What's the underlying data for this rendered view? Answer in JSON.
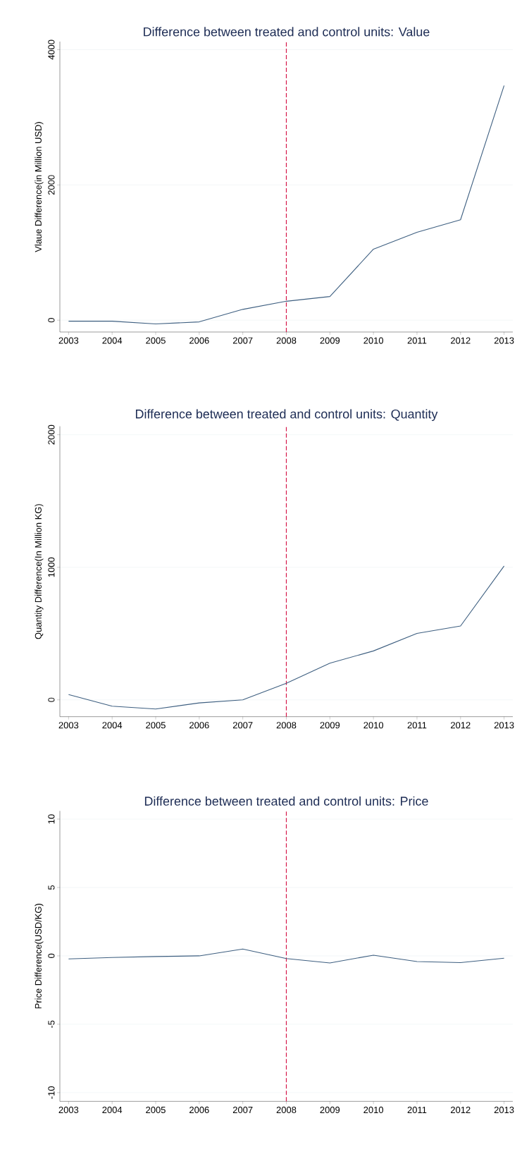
{
  "chart_data": [
    {
      "type": "line",
      "title": "Difference between treated and control units: Value",
      "ylabel": "Vlaue Difference(in Million USD)",
      "x": [
        2003,
        2004,
        2005,
        2006,
        2007,
        2008,
        2009,
        2010,
        2011,
        2012,
        2013
      ],
      "values": [
        -15,
        -15,
        -55,
        -25,
        160,
        280,
        350,
        1050,
        1300,
        1485,
        3470
      ],
      "color": "#3e5f80",
      "xlim": [
        2002.8,
        2013.2
      ],
      "ylim": [
        -175,
        4120
      ],
      "xticks": [
        2003,
        2004,
        2005,
        2006,
        2007,
        2008,
        2009,
        2010,
        2011,
        2012,
        2013
      ],
      "yticks": [
        0,
        2000,
        4000
      ],
      "grid": "y",
      "ref_lines": [
        {
          "axis": "x",
          "value": 2008,
          "color": "#d6184a",
          "line_style": "dashed"
        }
      ]
    },
    {
      "type": "line",
      "title": "Difference between treated and control units: Quantity",
      "ylabel": "Quantity Difference(In Million KG)",
      "x": [
        2003,
        2004,
        2005,
        2006,
        2007,
        2008,
        2009,
        2010,
        2011,
        2012,
        2013
      ],
      "values": [
        40,
        -48,
        -69,
        -23,
        0,
        125,
        277,
        369,
        501,
        557,
        1010
      ],
      "color": "#3e5f80",
      "xlim": [
        2002.8,
        2013.2
      ],
      "ylim": [
        -127,
        2064
      ],
      "xticks": [
        2003,
        2004,
        2005,
        2006,
        2007,
        2008,
        2009,
        2010,
        2011,
        2012,
        2013
      ],
      "yticks": [
        0,
        1000,
        2000
      ],
      "grid": "y",
      "ref_lines": [
        {
          "axis": "x",
          "value": 2008,
          "color": "#d6184a",
          "line_style": "dashed"
        }
      ]
    },
    {
      "type": "line",
      "title": "Difference between treated and control units: Price",
      "ylabel": "Price Difference(USD/KG)",
      "x": [
        2003,
        2004,
        2005,
        2006,
        2007,
        2008,
        2009,
        2010,
        2011,
        2012,
        2013
      ],
      "values": [
        -0.22,
        -0.12,
        -0.05,
        0,
        0.5,
        -0.2,
        -0.52,
        0.05,
        -0.42,
        -0.49,
        -0.17
      ],
      "color": "#3e5f80",
      "xlim": [
        2002.8,
        2013.2
      ],
      "ylim": [
        -10.64,
        10.6
      ],
      "xticks": [
        2003,
        2004,
        2005,
        2006,
        2007,
        2008,
        2009,
        2010,
        2011,
        2012,
        2013
      ],
      "yticks": [
        -10,
        -5,
        0,
        5,
        10
      ],
      "grid": "y",
      "ref_lines": [
        {
          "axis": "x",
          "value": 2008,
          "color": "#d6184a",
          "line_style": "dashed"
        }
      ]
    }
  ]
}
